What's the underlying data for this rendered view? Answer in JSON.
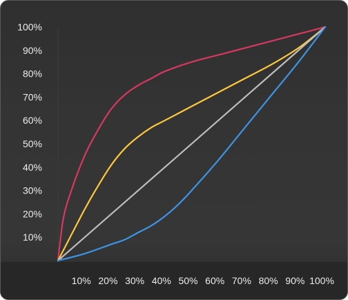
{
  "chart_data": {
    "type": "line",
    "title": "",
    "xlabel": "",
    "ylabel": "",
    "xlim": [
      0,
      100
    ],
    "ylim": [
      0,
      100
    ],
    "x_ticks": [
      "10%",
      "20%",
      "30%",
      "40%",
      "50%",
      "60%",
      "70%",
      "80%",
      "90%",
      "100%"
    ],
    "y_ticks": [
      "10%",
      "20%",
      "30%",
      "40%",
      "50%",
      "60%",
      "70%",
      "80%",
      "90%",
      "100%"
    ],
    "grid": false,
    "legend": "none",
    "series": [
      {
        "color": "#d6385f",
        "x": [
          0,
          2,
          5,
          10,
          15,
          20,
          25,
          30,
          35,
          40,
          50,
          60,
          70,
          80,
          90,
          100
        ],
        "y": [
          0,
          18,
          30,
          45,
          56,
          65,
          71,
          75,
          78,
          81,
          85,
          88,
          91,
          94,
          97,
          100
        ]
      },
      {
        "color": "#ffc83d",
        "x": [
          0,
          5,
          10,
          15,
          20,
          25,
          30,
          35,
          40,
          50,
          60,
          70,
          80,
          90,
          100
        ],
        "y": [
          0,
          11,
          22,
          32,
          41,
          48,
          53,
          57,
          60,
          66,
          72,
          78,
          84,
          91,
          100
        ]
      },
      {
        "color": "#bdbdbd",
        "x": [
          0,
          100
        ],
        "y": [
          0,
          100
        ]
      },
      {
        "color": "#3d95e6",
        "x": [
          0,
          10,
          20,
          25,
          30,
          35,
          40,
          45,
          50,
          60,
          70,
          80,
          90,
          100
        ],
        "y": [
          0,
          3,
          7,
          9,
          12,
          15,
          19,
          24,
          30,
          43,
          57,
          71,
          85,
          100
        ]
      }
    ]
  }
}
